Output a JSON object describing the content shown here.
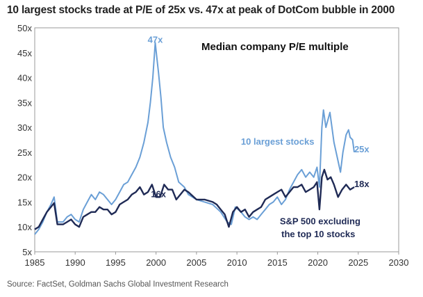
{
  "headline": "10 largest stocks trade at P/E of 25x vs. 47x at peak of DotCom bubble in 2000",
  "source": "Source: FactSet, Goldman Sachs Global Investment Research",
  "chart_data": {
    "type": "line",
    "title": "Median company P/E multiple",
    "xlabel": "",
    "ylabel": "",
    "xlim": [
      1985,
      2030
    ],
    "ylim": [
      5,
      50
    ],
    "x_ticks": [
      1985,
      1990,
      1995,
      2000,
      2005,
      2010,
      2015,
      2020,
      2025,
      2030
    ],
    "y_ticks": [
      5,
      10,
      15,
      20,
      25,
      30,
      35,
      40,
      45,
      50
    ],
    "y_tick_labels": [
      "5x",
      "10x",
      "15x",
      "20x",
      "25x",
      "30x",
      "35x",
      "40x",
      "45x",
      "50x"
    ],
    "grid": false,
    "series": [
      {
        "name": "10 largest stocks",
        "color": "#6a9fd6",
        "points": [
          [
            1985.0,
            8.5
          ],
          [
            1985.5,
            9.5
          ],
          [
            1986.0,
            11.0
          ],
          [
            1986.5,
            13.0
          ],
          [
            1987.0,
            14.5
          ],
          [
            1987.4,
            16.0
          ],
          [
            1987.8,
            11.0
          ],
          [
            1988.5,
            11.0
          ],
          [
            1989.0,
            12.0
          ],
          [
            1989.5,
            12.5
          ],
          [
            1990.0,
            11.5
          ],
          [
            1990.5,
            11.0
          ],
          [
            1991.0,
            13.5
          ],
          [
            1991.5,
            15.0
          ],
          [
            1992.0,
            16.5
          ],
          [
            1992.5,
            15.5
          ],
          [
            1993.0,
            17.0
          ],
          [
            1993.5,
            16.5
          ],
          [
            1994.0,
            15.5
          ],
          [
            1994.5,
            14.5
          ],
          [
            1995.0,
            15.5
          ],
          [
            1995.5,
            17.0
          ],
          [
            1996.0,
            18.5
          ],
          [
            1996.5,
            19.0
          ],
          [
            1997.0,
            20.5
          ],
          [
            1997.5,
            22.0
          ],
          [
            1998.0,
            24.0
          ],
          [
            1998.5,
            27.0
          ],
          [
            1999.0,
            31.0
          ],
          [
            1999.3,
            35.0
          ],
          [
            1999.6,
            40.0
          ],
          [
            1999.9,
            47.0
          ],
          [
            2000.1,
            44.0
          ],
          [
            2000.3,
            41.0
          ],
          [
            2000.6,
            36.0
          ],
          [
            2000.9,
            30.0
          ],
          [
            2001.3,
            27.0
          ],
          [
            2001.8,
            24.0
          ],
          [
            2002.3,
            22.0
          ],
          [
            2002.8,
            19.0
          ],
          [
            2003.5,
            18.0
          ],
          [
            2004.0,
            16.5
          ],
          [
            2005.0,
            15.5
          ],
          [
            2006.0,
            15.0
          ],
          [
            2007.0,
            14.5
          ],
          [
            2008.0,
            13.0
          ],
          [
            2008.8,
            11.0
          ],
          [
            2009.3,
            10.5
          ],
          [
            2009.8,
            14.0
          ],
          [
            2010.5,
            13.0
          ],
          [
            2011.0,
            12.0
          ],
          [
            2011.5,
            11.5
          ],
          [
            2012.0,
            12.0
          ],
          [
            2012.5,
            11.5
          ],
          [
            2013.0,
            12.5
          ],
          [
            2013.5,
            13.5
          ],
          [
            2014.0,
            14.5
          ],
          [
            2014.5,
            15.0
          ],
          [
            2015.0,
            16.0
          ],
          [
            2015.5,
            14.5
          ],
          [
            2016.0,
            15.5
          ],
          [
            2016.5,
            17.5
          ],
          [
            2017.0,
            19.0
          ],
          [
            2017.5,
            20.5
          ],
          [
            2018.0,
            21.5
          ],
          [
            2018.5,
            20.0
          ],
          [
            2019.0,
            21.0
          ],
          [
            2019.5,
            20.0
          ],
          [
            2019.9,
            22.0
          ],
          [
            2020.2,
            18.0
          ],
          [
            2020.5,
            30.0
          ],
          [
            2020.7,
            33.5
          ],
          [
            2021.0,
            30.0
          ],
          [
            2021.5,
            33.0
          ],
          [
            2022.0,
            27.0
          ],
          [
            2022.4,
            24.0
          ],
          [
            2022.8,
            21.0
          ],
          [
            2023.1,
            25.0
          ],
          [
            2023.5,
            28.5
          ],
          [
            2023.8,
            29.5
          ],
          [
            2024.0,
            28.0
          ],
          [
            2024.3,
            27.5
          ],
          [
            2024.5,
            25.0
          ]
        ]
      },
      {
        "name": "S&P 500 excluding the top 10 stocks",
        "color": "#1f2a55",
        "points": [
          [
            1985.0,
            9.5
          ],
          [
            1985.5,
            10.0
          ],
          [
            1986.0,
            11.5
          ],
          [
            1986.5,
            13.0
          ],
          [
            1987.0,
            14.0
          ],
          [
            1987.4,
            14.8
          ],
          [
            1987.8,
            10.5
          ],
          [
            1988.5,
            10.5
          ],
          [
            1989.0,
            11.0
          ],
          [
            1989.5,
            11.5
          ],
          [
            1990.0,
            10.5
          ],
          [
            1990.5,
            10.0
          ],
          [
            1991.0,
            12.0
          ],
          [
            1991.5,
            12.5
          ],
          [
            1992.0,
            13.0
          ],
          [
            1992.5,
            13.0
          ],
          [
            1993.0,
            14.0
          ],
          [
            1993.5,
            13.5
          ],
          [
            1994.0,
            13.5
          ],
          [
            1994.5,
            12.5
          ],
          [
            1995.0,
            13.0
          ],
          [
            1995.5,
            14.5
          ],
          [
            1996.0,
            15.0
          ],
          [
            1996.5,
            15.5
          ],
          [
            1997.0,
            16.5
          ],
          [
            1997.5,
            17.0
          ],
          [
            1998.0,
            18.0
          ],
          [
            1998.5,
            16.5
          ],
          [
            1999.0,
            17.0
          ],
          [
            1999.5,
            18.5
          ],
          [
            2000.0,
            16.0
          ],
          [
            2000.5,
            16.0
          ],
          [
            2001.0,
            18.5
          ],
          [
            2001.5,
            17.5
          ],
          [
            2002.0,
            17.5
          ],
          [
            2002.5,
            15.5
          ],
          [
            2003.0,
            16.5
          ],
          [
            2003.5,
            17.5
          ],
          [
            2004.0,
            17.0
          ],
          [
            2005.0,
            15.5
          ],
          [
            2006.0,
            15.5
          ],
          [
            2007.0,
            15.0
          ],
          [
            2007.5,
            14.5
          ],
          [
            2008.0,
            13.5
          ],
          [
            2008.5,
            12.5
          ],
          [
            2009.0,
            10.0
          ],
          [
            2009.5,
            13.0
          ],
          [
            2010.0,
            14.0
          ],
          [
            2010.5,
            13.0
          ],
          [
            2011.0,
            13.5
          ],
          [
            2011.5,
            12.0
          ],
          [
            2012.0,
            13.0
          ],
          [
            2012.5,
            13.5
          ],
          [
            2013.0,
            14.0
          ],
          [
            2013.5,
            15.5
          ],
          [
            2014.0,
            16.0
          ],
          [
            2014.5,
            16.5
          ],
          [
            2015.0,
            17.0
          ],
          [
            2015.5,
            17.5
          ],
          [
            2016.0,
            16.0
          ],
          [
            2016.5,
            17.0
          ],
          [
            2017.0,
            18.0
          ],
          [
            2017.5,
            18.0
          ],
          [
            2018.0,
            18.5
          ],
          [
            2018.5,
            17.0
          ],
          [
            2019.0,
            17.5
          ],
          [
            2019.5,
            18.0
          ],
          [
            2019.9,
            19.0
          ],
          [
            2020.2,
            13.5
          ],
          [
            2020.5,
            20.0
          ],
          [
            2020.8,
            21.5
          ],
          [
            2021.2,
            19.5
          ],
          [
            2021.6,
            20.0
          ],
          [
            2022.0,
            18.5
          ],
          [
            2022.5,
            16.0
          ],
          [
            2023.0,
            17.5
          ],
          [
            2023.5,
            18.5
          ],
          [
            2024.0,
            17.5
          ],
          [
            2024.5,
            18.0
          ]
        ]
      }
    ],
    "annotations": [
      {
        "text": "47x",
        "x": 1999.9,
        "y": 47,
        "color": "#6a9fd6"
      },
      {
        "text": "16x",
        "x": 2000.3,
        "y": 16,
        "color": "#1f2a55"
      },
      {
        "text": "10 largest stocks",
        "x": 2010.5,
        "y": 26.5,
        "color": "#6a9fd6"
      },
      {
        "text": "25x",
        "x": 2024.5,
        "y": 25,
        "color": "#6a9fd6"
      },
      {
        "text": "18x",
        "x": 2024.5,
        "y": 18,
        "color": "#1f2a55"
      },
      {
        "text": "S&P 500 excluding",
        "x": 2015.3,
        "y": 10.5,
        "color": "#1f2a55"
      },
      {
        "text": "the top 10 stocks",
        "x": 2015.5,
        "y": 7.9,
        "color": "#1f2a55"
      }
    ]
  }
}
